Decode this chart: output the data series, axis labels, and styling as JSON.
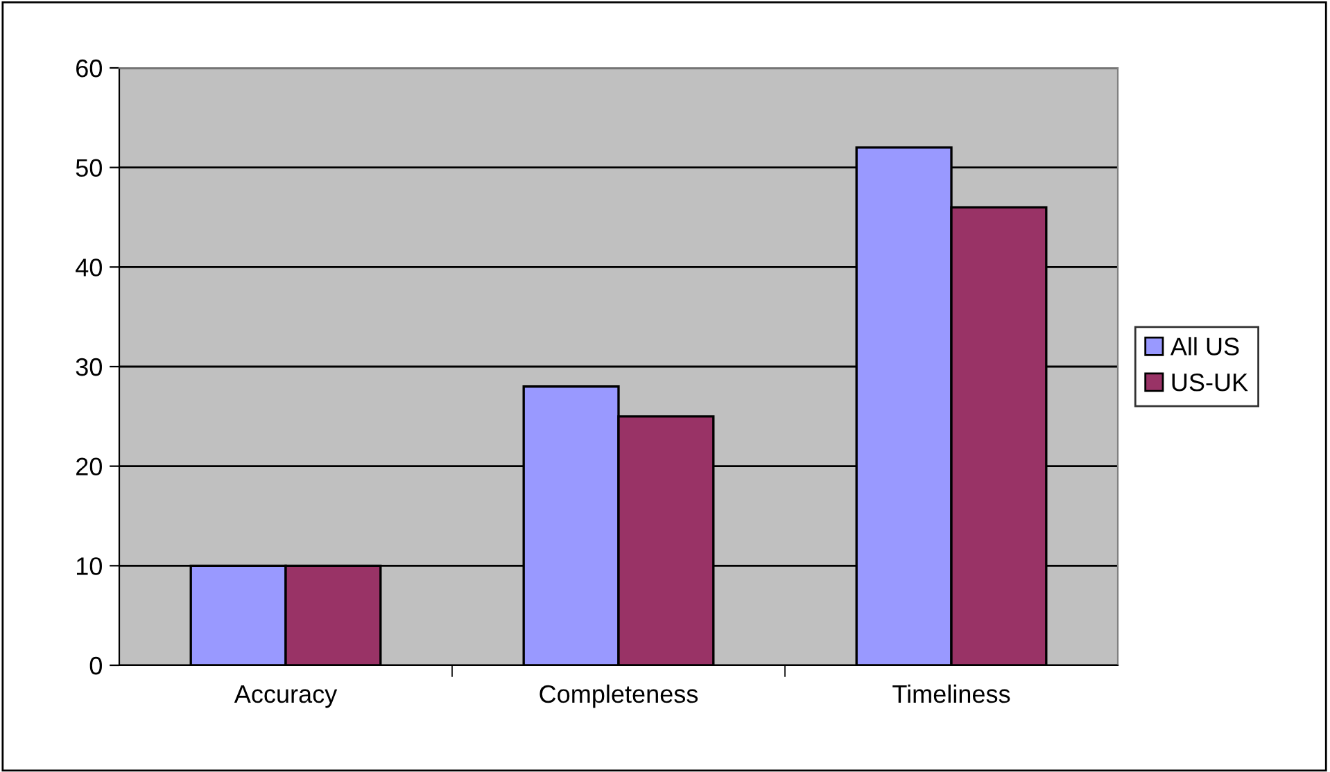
{
  "chart_data": {
    "type": "bar",
    "categories": [
      "Accuracy",
      "Completeness",
      "Timeliness"
    ],
    "series": [
      {
        "name": "All US",
        "color": "#9999ff",
        "values": [
          10,
          28,
          52
        ]
      },
      {
        "name": "US-UK",
        "color": "#993366",
        "values": [
          10,
          25,
          46
        ]
      }
    ],
    "ylim": [
      0,
      60
    ],
    "yticks": [
      0,
      10,
      20,
      30,
      40,
      50,
      60
    ],
    "grid": "y",
    "legend": "right"
  }
}
